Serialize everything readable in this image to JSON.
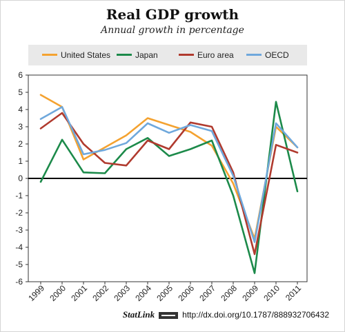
{
  "header": {
    "title": "Real GDP growth",
    "subtitle": "Annual growth in percentage"
  },
  "footer": {
    "statlink": "StatLink",
    "url": "http://dx.doi.org/10.1787/888932706432"
  },
  "chart_data": {
    "type": "line",
    "title": "Real GDP growth",
    "subtitle": "Annual growth in percentage",
    "xlabel": "",
    "ylabel": "",
    "x": [
      "1999",
      "2000",
      "2001",
      "2002",
      "2003",
      "2004",
      "2005",
      "2006",
      "2007",
      "2008",
      "2009",
      "2010",
      "2011"
    ],
    "ylim": [
      -6,
      6
    ],
    "yticks": [
      -6,
      -5,
      -4,
      -3,
      -2,
      -1,
      0,
      1,
      2,
      3,
      4,
      5,
      6
    ],
    "grid": false,
    "legend_position": "top",
    "series": [
      {
        "name": "United States",
        "color": "#f4a230",
        "values": [
          4.85,
          4.15,
          1.1,
          1.8,
          2.5,
          3.5,
          3.1,
          2.7,
          1.9,
          -0.3,
          -3.5,
          3.0,
          1.8
        ]
      },
      {
        "name": "Japan",
        "color": "#1c8a4a",
        "values": [
          -0.2,
          2.25,
          0.35,
          0.3,
          1.7,
          2.35,
          1.3,
          1.7,
          2.2,
          -1.0,
          -5.5,
          4.45,
          -0.75
        ]
      },
      {
        "name": "Euro area",
        "color": "#b03a2e",
        "values": [
          2.9,
          3.8,
          2.0,
          0.9,
          0.75,
          2.2,
          1.7,
          3.25,
          3.0,
          0.35,
          -4.4,
          1.95,
          1.5
        ]
      },
      {
        "name": "OECD",
        "color": "#6fa8dc",
        "values": [
          3.45,
          4.15,
          1.4,
          1.65,
          2.05,
          3.2,
          2.65,
          3.1,
          2.75,
          0.15,
          -3.7,
          3.2,
          1.8
        ]
      }
    ]
  }
}
